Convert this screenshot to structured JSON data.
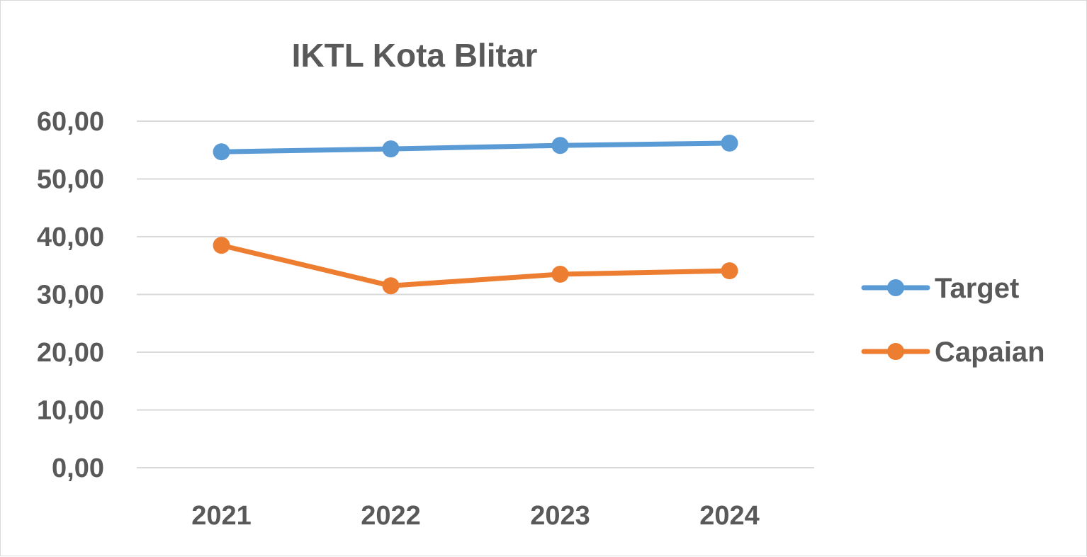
{
  "chart_data": {
    "type": "line",
    "title": "IKTL Kota Blitar",
    "categories": [
      "2021",
      "2022",
      "2023",
      "2024"
    ],
    "series": [
      {
        "name": "Target",
        "color": "#5b9bd5",
        "values": [
          54.7,
          55.2,
          55.8,
          56.2
        ]
      },
      {
        "name": "Capaian",
        "color": "#ed7d31",
        "values": [
          38.5,
          31.5,
          33.5,
          34.1
        ]
      }
    ],
    "ylim": [
      0,
      60
    ],
    "yticks": [
      "0,00",
      "10,00",
      "20,00",
      "30,00",
      "40,00",
      "50,00",
      "60,00"
    ],
    "grid": true,
    "legend_position": "right"
  }
}
